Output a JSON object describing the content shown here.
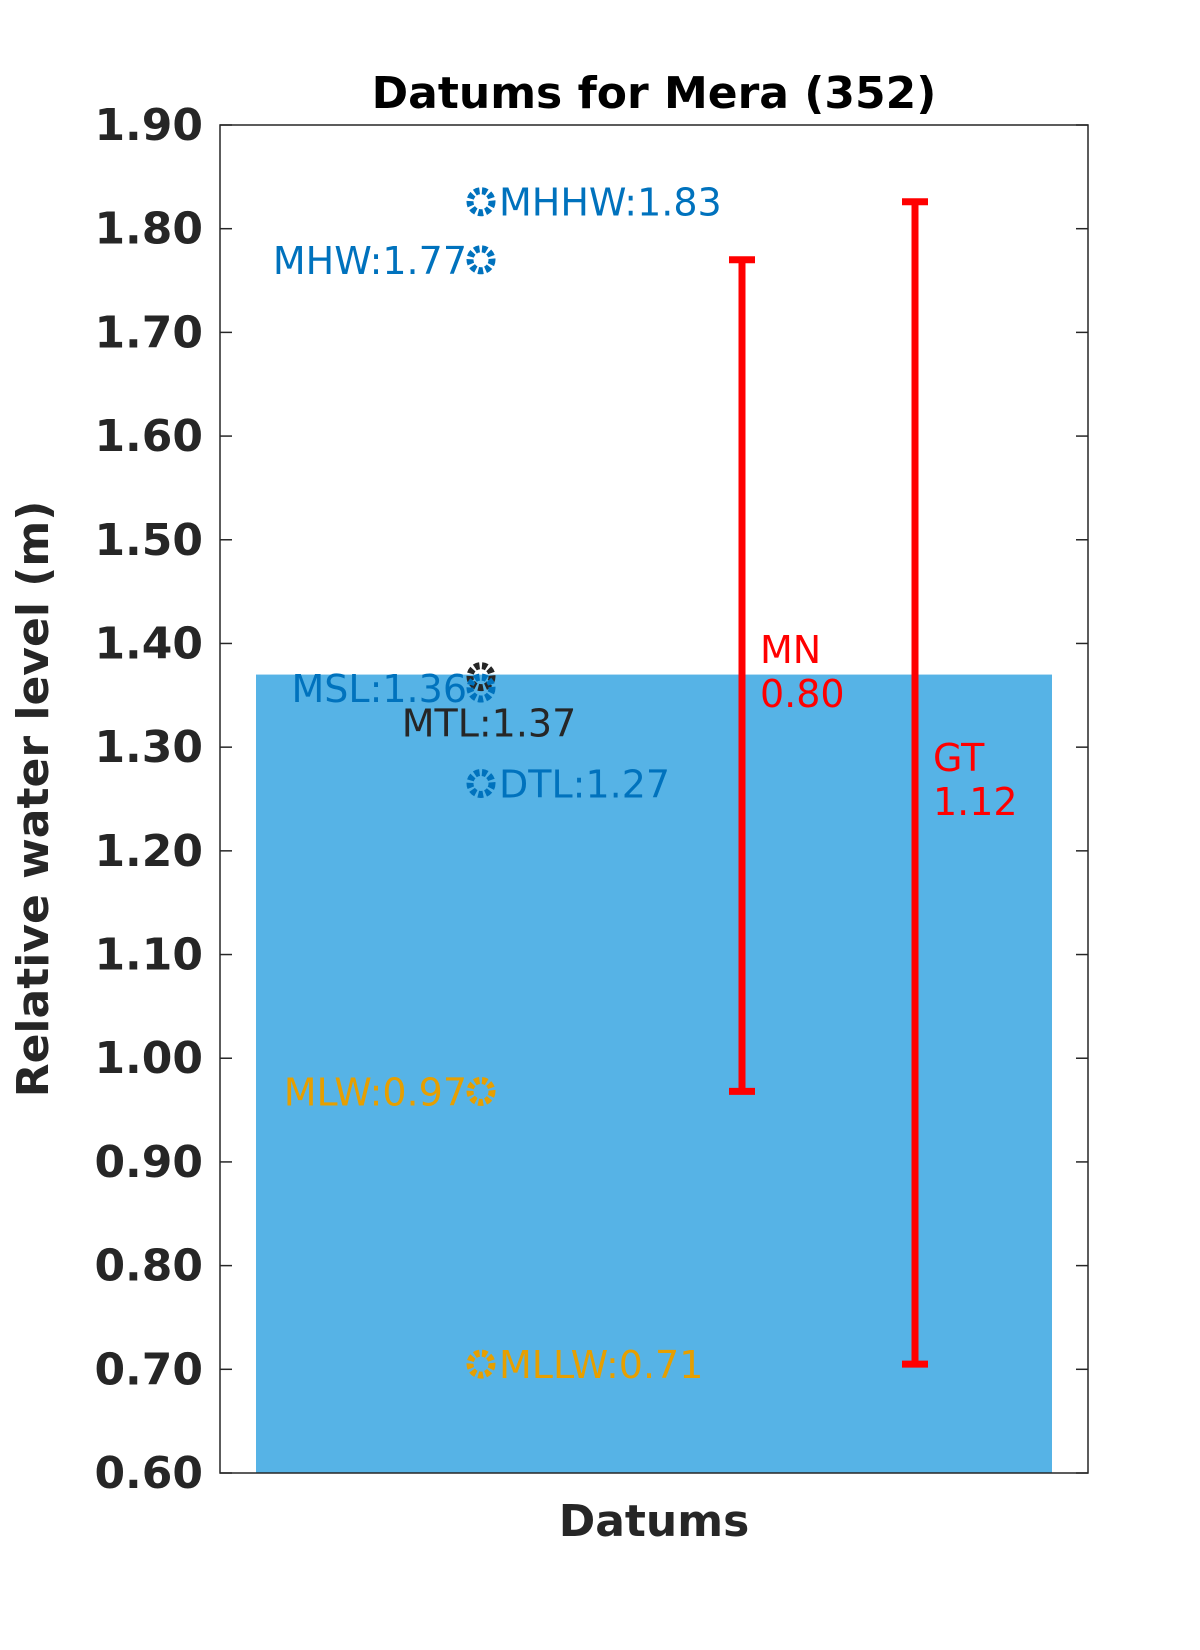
{
  "chart_data": {
    "type": "scatter",
    "title": "Datums for Mera (352)",
    "xlabel": "Datums",
    "ylabel": "Relative water level (m)",
    "ylim": [
      0.6,
      1.9
    ],
    "yticks": [
      "0.60",
      "0.70",
      "0.80",
      "0.90",
      "1.00",
      "1.10",
      "1.20",
      "1.30",
      "1.40",
      "1.50",
      "1.60",
      "1.70",
      "1.80",
      "1.90"
    ],
    "grid": false,
    "fill_bar": {
      "from": 0.6,
      "to": 1.37,
      "color": "#56b3e6"
    },
    "points": [
      {
        "label": "MHHW:1.83",
        "value": 1.826,
        "color": "#0072bd",
        "label_side": "right"
      },
      {
        "label": "MHW:1.77",
        "value": 1.77,
        "color": "#0072bd",
        "label_side": "left"
      },
      {
        "label": "MTL:1.37",
        "value": 1.368,
        "color": "#262626",
        "label_side": "below"
      },
      {
        "label": "MSL:1.36",
        "value": 1.357,
        "color": "#0072bd",
        "label_side": "left"
      },
      {
        "label": "DTL:1.27",
        "value": 1.265,
        "color": "#0072bd",
        "label_side": "right"
      },
      {
        "label": "MLW:0.97",
        "value": 0.968,
        "color": "#e69f00",
        "label_side": "left"
      },
      {
        "label": "MLLW:0.71",
        "value": 0.705,
        "color": "#e69f00",
        "label_side": "right"
      }
    ],
    "ranges": [
      {
        "name": "MN",
        "value_text": "0.80",
        "low": 0.968,
        "high": 1.77,
        "color": "#ff0000"
      },
      {
        "name": "GT",
        "value_text": "1.12",
        "low": 0.705,
        "high": 1.826,
        "color": "#ff0000"
      }
    ]
  }
}
